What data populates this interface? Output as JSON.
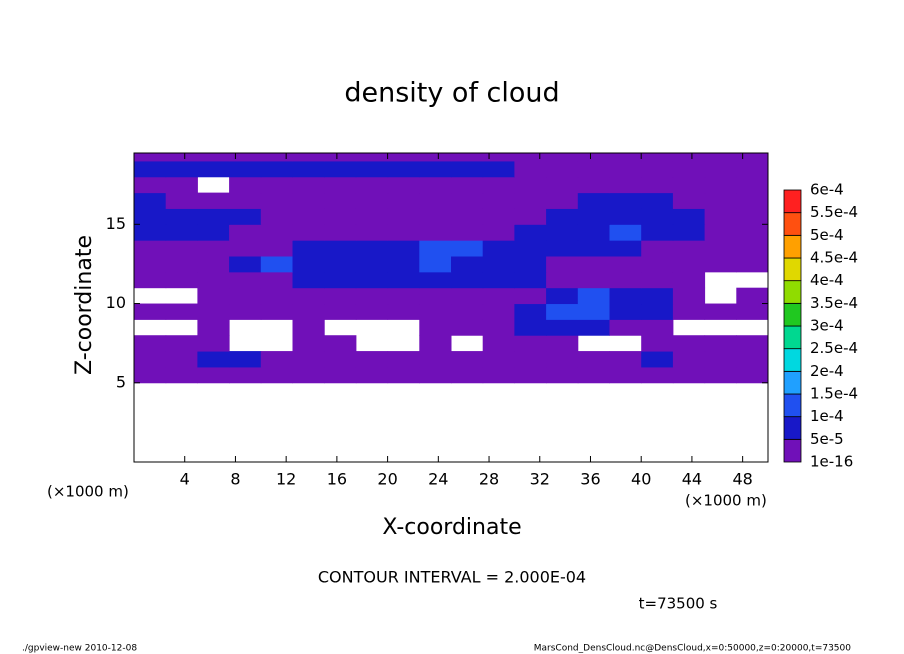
{
  "chart_data": {
    "type": "contour",
    "title": "density of cloud",
    "xlabel": "X-coordinate",
    "ylabel": "Z-coordinate",
    "x_unit_label": "(×1000 m)",
    "annotation": "CONTOUR INTERVAL = 2.000E-04",
    "time_label": "t=73500 s",
    "footer_left": "./gpview-new  2010-12-08",
    "footer_right": "MarsCond_DensCloud.nc@DensCloud,x=0:50000,z=0:20000,t=73500",
    "xlim": [
      0,
      50
    ],
    "ylim": [
      0,
      19.5
    ],
    "xticks": [
      4,
      8,
      12,
      16,
      20,
      24,
      28,
      32,
      36,
      40,
      44,
      48
    ],
    "yticks": [
      5,
      10,
      15
    ],
    "x": [
      1.25,
      3.75,
      6.25,
      8.75,
      11.25,
      13.75,
      16.25,
      18.75,
      21.25,
      23.75,
      26.25,
      28.75,
      31.25,
      33.75,
      36.25,
      38.75,
      41.25,
      43.75,
      46.25,
      48.75
    ],
    "y": [
      5.5,
      6.5,
      7.5,
      8.5,
      9.5,
      10.5,
      11.5,
      12.5,
      13.5,
      14.5,
      15.5,
      16.5,
      17.5,
      18.5,
      19.5
    ],
    "z": [
      [
        2e-05,
        2e-05,
        2e-05,
        2e-05,
        2e-05,
        2e-05,
        2e-05,
        2e-05,
        2e-05,
        2e-05,
        2e-05,
        2e-05,
        2e-05,
        2e-05,
        2e-05,
        2e-05,
        2e-05,
        2e-05,
        2e-05,
        2e-05
      ],
      [
        2e-05,
        2e-05,
        7e-05,
        7e-05,
        2e-05,
        2e-05,
        2e-05,
        2e-05,
        2e-05,
        2e-05,
        2e-05,
        2e-05,
        2e-05,
        2e-05,
        2e-05,
        2e-05,
        7e-05,
        2e-05,
        2e-05,
        2e-05
      ],
      [
        2e-05,
        2e-05,
        2e-05,
        null,
        null,
        2e-05,
        2e-05,
        null,
        null,
        2e-05,
        null,
        2e-05,
        2e-05,
        2e-05,
        null,
        null,
        2e-05,
        2e-05,
        2e-05,
        2e-05
      ],
      [
        null,
        null,
        2e-05,
        null,
        null,
        2e-05,
        null,
        null,
        null,
        2e-05,
        2e-05,
        2e-05,
        7e-05,
        7e-05,
        7e-05,
        2e-05,
        2e-05,
        null,
        null,
        null
      ],
      [
        2e-05,
        2e-05,
        2e-05,
        2e-05,
        2e-05,
        2e-05,
        2e-05,
        2e-05,
        2e-05,
        2e-05,
        2e-05,
        2e-05,
        7e-05,
        0.00012,
        0.00012,
        7e-05,
        7e-05,
        2e-05,
        2e-05,
        2e-05
      ],
      [
        null,
        null,
        2e-05,
        2e-05,
        2e-05,
        2e-05,
        2e-05,
        2e-05,
        2e-05,
        2e-05,
        2e-05,
        2e-05,
        2e-05,
        7e-05,
        0.00012,
        7e-05,
        7e-05,
        2e-05,
        null,
        2e-05
      ],
      [
        2e-05,
        2e-05,
        2e-05,
        2e-05,
        2e-05,
        7e-05,
        7e-05,
        7e-05,
        7e-05,
        7e-05,
        7e-05,
        7e-05,
        7e-05,
        2e-05,
        2e-05,
        2e-05,
        2e-05,
        2e-05,
        null,
        null
      ],
      [
        2e-05,
        2e-05,
        2e-05,
        7e-05,
        0.00012,
        7e-05,
        7e-05,
        7e-05,
        7e-05,
        0.00012,
        7e-05,
        7e-05,
        7e-05,
        2e-05,
        2e-05,
        2e-05,
        2e-05,
        2e-05,
        2e-05,
        2e-05
      ],
      [
        2e-05,
        2e-05,
        2e-05,
        2e-05,
        2e-05,
        7e-05,
        7e-05,
        7e-05,
        7e-05,
        0.00012,
        0.00012,
        7e-05,
        7e-05,
        7e-05,
        7e-05,
        7e-05,
        2e-05,
        2e-05,
        2e-05,
        2e-05
      ],
      [
        7e-05,
        7e-05,
        7e-05,
        2e-05,
        2e-05,
        2e-05,
        2e-05,
        2e-05,
        2e-05,
        2e-05,
        2e-05,
        2e-05,
        7e-05,
        7e-05,
        7e-05,
        0.00012,
        7e-05,
        7e-05,
        2e-05,
        2e-05
      ],
      [
        7e-05,
        7e-05,
        7e-05,
        7e-05,
        2e-05,
        2e-05,
        2e-05,
        2e-05,
        2e-05,
        2e-05,
        2e-05,
        2e-05,
        2e-05,
        7e-05,
        7e-05,
        7e-05,
        7e-05,
        7e-05,
        2e-05,
        2e-05
      ],
      [
        7e-05,
        2e-05,
        2e-05,
        2e-05,
        2e-05,
        2e-05,
        2e-05,
        2e-05,
        2e-05,
        2e-05,
        2e-05,
        2e-05,
        2e-05,
        2e-05,
        7e-05,
        7e-05,
        7e-05,
        2e-05,
        2e-05,
        2e-05
      ],
      [
        2e-05,
        2e-05,
        null,
        2e-05,
        2e-05,
        2e-05,
        2e-05,
        2e-05,
        2e-05,
        2e-05,
        2e-05,
        2e-05,
        2e-05,
        2e-05,
        2e-05,
        2e-05,
        2e-05,
        2e-05,
        2e-05,
        2e-05
      ],
      [
        7e-05,
        7e-05,
        7e-05,
        7e-05,
        7e-05,
        7e-05,
        7e-05,
        7e-05,
        7e-05,
        7e-05,
        7e-05,
        7e-05,
        2e-05,
        2e-05,
        2e-05,
        2e-05,
        2e-05,
        2e-05,
        2e-05,
        2e-05
      ],
      [
        2e-05,
        2e-05,
        2e-05,
        2e-05,
        2e-05,
        2e-05,
        2e-05,
        2e-05,
        2e-05,
        2e-05,
        2e-05,
        2e-05,
        2e-05,
        2e-05,
        2e-05,
        2e-05,
        2e-05,
        2e-05,
        2e-05,
        2e-05
      ]
    ],
    "colorbar": {
      "levels": [
        {
          "value": 1e-16,
          "label": "1e-16"
        },
        {
          "value": 5e-05,
          "label": "5e-5"
        },
        {
          "value": 0.0001,
          "label": "1e-4"
        },
        {
          "value": 0.00015,
          "label": "1.5e-4"
        },
        {
          "value": 0.0002,
          "label": "2e-4"
        },
        {
          "value": 0.00025,
          "label": "2.5e-4"
        },
        {
          "value": 0.0003,
          "label": "3e-4"
        },
        {
          "value": 0.00035,
          "label": "3.5e-4"
        },
        {
          "value": 0.0004,
          "label": "4e-4"
        },
        {
          "value": 0.00045,
          "label": "4.5e-4"
        },
        {
          "value": 0.0005,
          "label": "5e-4"
        },
        {
          "value": 0.00055,
          "label": "5.5e-4"
        },
        {
          "value": 0.0006,
          "label": "6e-4"
        }
      ],
      "colors": [
        "#7010b8",
        "#1818c8",
        "#2050f0",
        "#20a0ff",
        "#00d8e0",
        "#00d890",
        "#20c820",
        "#90dc00",
        "#e0d800",
        "#ffa000",
        "#ff5010",
        "#ff2020"
      ]
    }
  }
}
